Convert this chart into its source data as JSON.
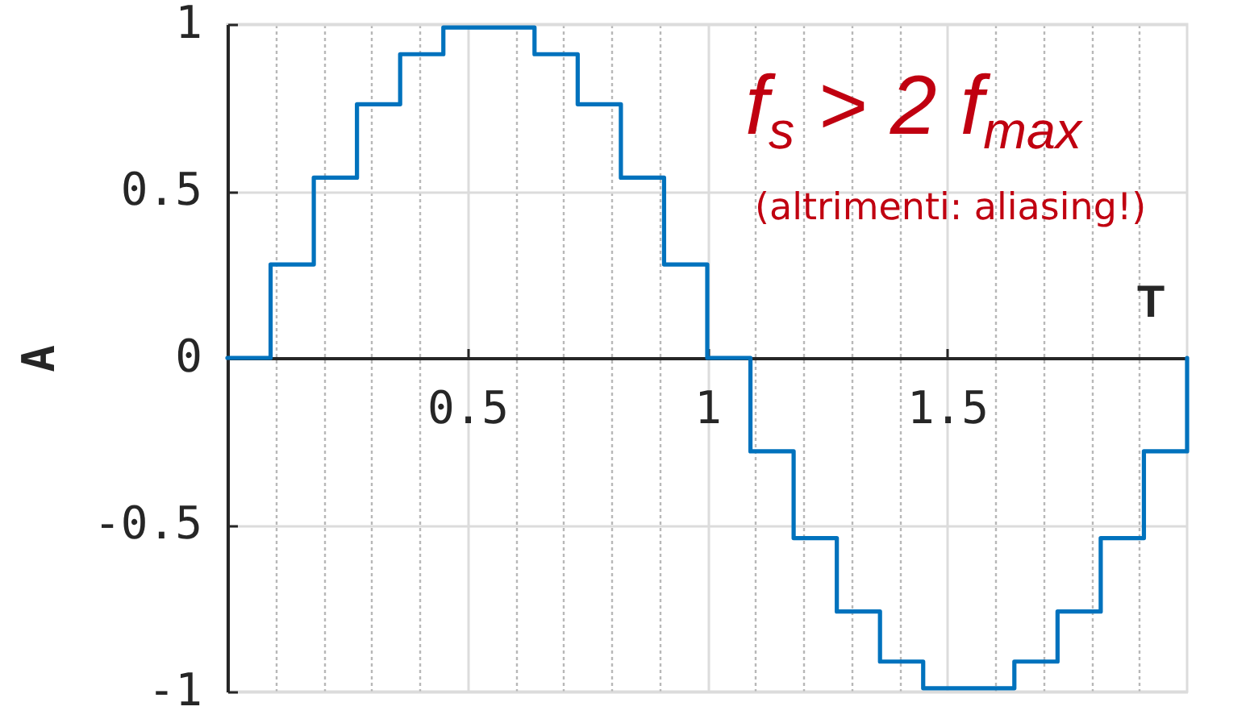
{
  "chart_data": {
    "type": "step",
    "xlabel": "T",
    "ylabel": "A",
    "annotations": [
      "f$_{s}$ > 2 f$_{max}$",
      "(altrimenti: aliasing!)"
    ],
    "x": [
      0,
      0.09,
      0.18,
      0.27,
      0.36,
      0.45,
      0.55,
      0.64,
      0.73,
      0.82,
      0.91,
      1,
      1.09,
      1.18,
      1.27,
      1.36,
      1.45,
      1.55,
      1.64,
      1.73,
      1.82,
      1.91,
      2
    ],
    "values": [
      0,
      0.28,
      0.54,
      0.76,
      0.91,
      0.99,
      0.99,
      0.91,
      0.76,
      0.54,
      0.28,
      0,
      -0.28,
      -0.54,
      -0.76,
      -0.91,
      -0.99,
      -0.99,
      -0.91,
      -0.76,
      -0.54,
      -0.28,
      0
    ],
    "color": "#0072bd",
    "xlim": [
      0,
      2
    ],
    "ylim": [
      -1,
      1
    ],
    "xticks": [
      {
        "value": 0.1,
        "label": null
      },
      {
        "value": 0.2,
        "label": null
      },
      {
        "value": 0.3,
        "label": null
      },
      {
        "value": 0.4,
        "label": null
      },
      0.5,
      {
        "value": 0.6,
        "label": null
      },
      {
        "value": 0.7,
        "label": null
      },
      {
        "value": 0.8,
        "label": null
      },
      {
        "value": 0.9,
        "label": null
      },
      1,
      {
        "value": 1.1,
        "label": null
      },
      {
        "value": 1.2,
        "label": null
      },
      {
        "value": 1.3,
        "label": null
      },
      {
        "value": 1.4,
        "label": null
      },
      1.5,
      {
        "value": 1.6,
        "label": null
      },
      {
        "value": 1.7,
        "label": null
      },
      {
        "value": 1.8,
        "label": null
      },
      {
        "value": 1.9,
        "label": null
      }
    ],
    "yticks": [
      -1,
      -0.5,
      0,
      0.5,
      1
    ],
    "grid": true
  }
}
